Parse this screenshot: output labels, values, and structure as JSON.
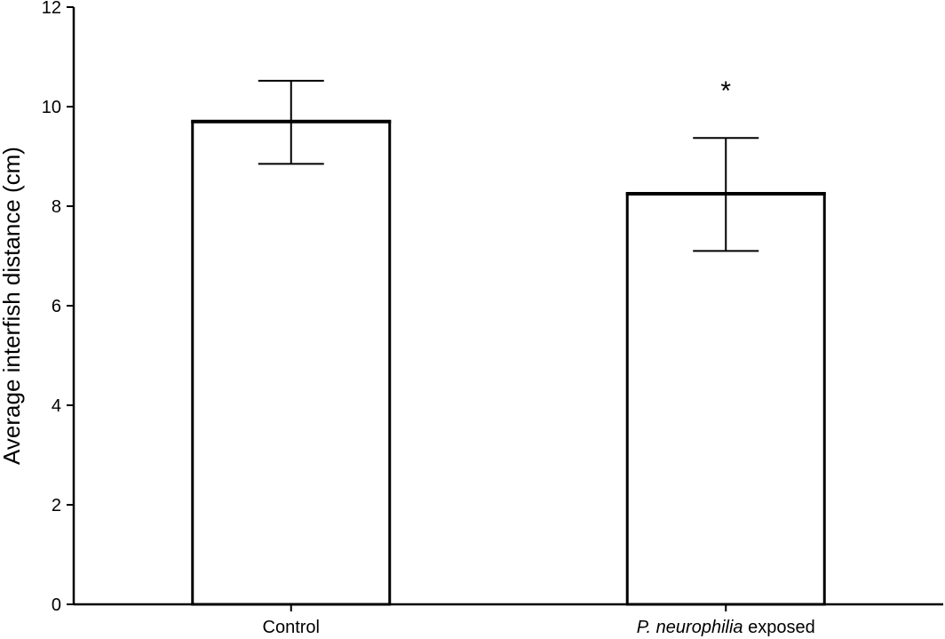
{
  "chart_data": {
    "type": "bar",
    "categories": [
      "Control",
      "P. neurophilia exposed"
    ],
    "category_parts": [
      {
        "italic": "",
        "plain": "Control"
      },
      {
        "italic": "P. neurophilia",
        "plain": " exposed"
      }
    ],
    "values": [
      9.7,
      8.25
    ],
    "error_upper": [
      10.52,
      9.37
    ],
    "error_lower": [
      8.85,
      7.1
    ],
    "annotations": [
      "",
      "*"
    ],
    "ylabel": "Average interfish distance (cm)",
    "xlabel": "",
    "ylim": [
      0,
      12
    ],
    "yticks": [
      0,
      2,
      4,
      6,
      8,
      10,
      12
    ],
    "grid": false,
    "legend": "none"
  }
}
